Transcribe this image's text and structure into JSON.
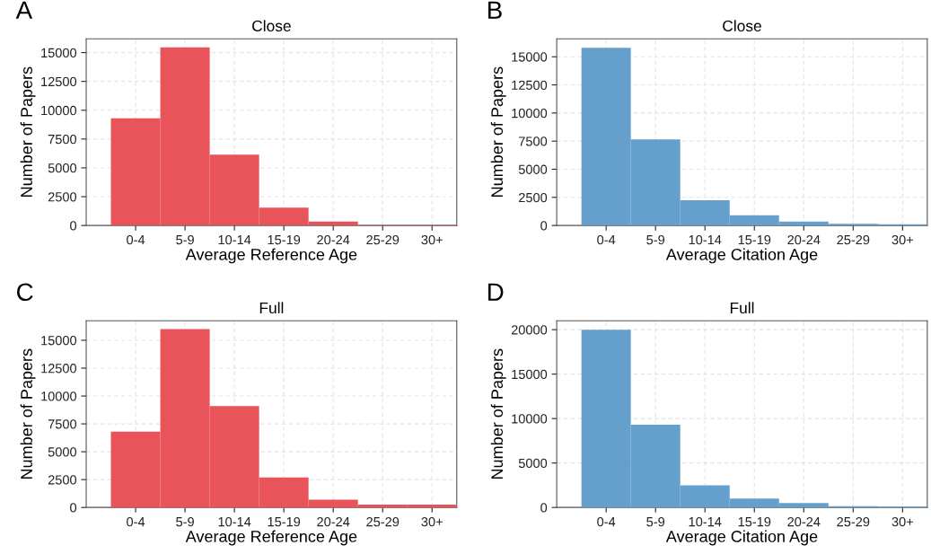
{
  "chart_data": [
    {
      "type": "bar",
      "title": "Close",
      "xlabel": "Average Reference Age",
      "ylabel": "Number of Papers",
      "annotations": [
        "A"
      ],
      "categories": [
        "0-4",
        "5-9",
        "10-14",
        "15-19",
        "20-24",
        "25-29",
        "30+"
      ],
      "values": [
        9300,
        15450,
        6150,
        1550,
        350,
        50,
        50
      ],
      "color": "#e9535a",
      "ylim": [
        0,
        16200
      ],
      "yticks": [
        0,
        2500,
        5000,
        7500,
        10000,
        12500,
        15000
      ],
      "grid": true
    },
    {
      "type": "bar",
      "title": "Close",
      "xlabel": "Average Citation Age",
      "ylabel": "Number of Papers",
      "annotations": [
        "B"
      ],
      "categories": [
        "0-4",
        "5-9",
        "10-14",
        "15-19",
        "20-24",
        "25-29",
        "30+"
      ],
      "values": [
        15800,
        7650,
        2250,
        900,
        350,
        150,
        100
      ],
      "color": "#659fcc",
      "ylim": [
        0,
        16600
      ],
      "yticks": [
        0,
        2500,
        5000,
        7500,
        10000,
        12500,
        15000
      ],
      "grid": true
    },
    {
      "type": "bar",
      "title": "Full",
      "xlabel": "Average Reference Age",
      "ylabel": "Number of Papers",
      "annotations": [
        "C"
      ],
      "categories": [
        "0-4",
        "5-9",
        "10-14",
        "15-19",
        "20-24",
        "25-29",
        "30+"
      ],
      "values": [
        6800,
        16000,
        9100,
        2700,
        700,
        250,
        250
      ],
      "color": "#e9535a",
      "ylim": [
        0,
        16750
      ],
      "yticks": [
        0,
        2500,
        5000,
        7500,
        10000,
        12500,
        15000
      ],
      "grid": true
    },
    {
      "type": "bar",
      "title": "Full",
      "xlabel": "Average Citation Age",
      "ylabel": "Number of Papers",
      "annotations": [
        "D"
      ],
      "categories": [
        "0-4",
        "5-9",
        "10-14",
        "15-19",
        "20-24",
        "25-29",
        "30+"
      ],
      "values": [
        20000,
        9300,
        2500,
        1000,
        500,
        150,
        100
      ],
      "color": "#659fcc",
      "ylim": [
        0,
        21000
      ],
      "yticks": [
        0,
        5000,
        10000,
        15000,
        20000
      ],
      "grid": true
    }
  ]
}
